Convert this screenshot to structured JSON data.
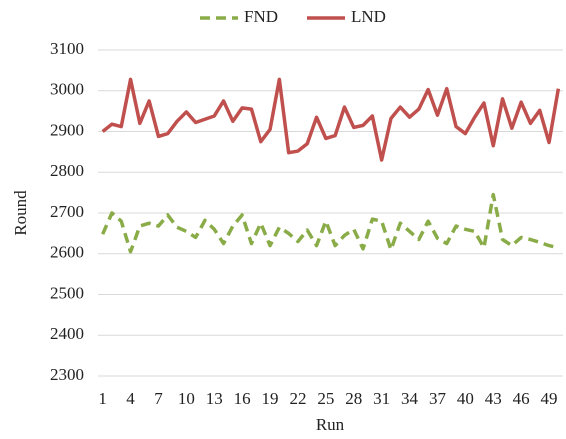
{
  "chart_data": {
    "type": "line",
    "x_label": "Run",
    "y_label": "Round",
    "categories": [
      1,
      null,
      null,
      4,
      null,
      null,
      7,
      null,
      null,
      10,
      null,
      null,
      13,
      null,
      null,
      16,
      null,
      null,
      19,
      null,
      null,
      22,
      null,
      null,
      25,
      null,
      null,
      28,
      null,
      null,
      31,
      null,
      null,
      34,
      null,
      null,
      37,
      null,
      null,
      40,
      null,
      null,
      43,
      null,
      null,
      46,
      null,
      null,
      49,
      null
    ],
    "series": [
      {
        "name": "FND",
        "color": "#8aac48",
        "line_style": "dashed",
        "values": [
          2648,
          2700,
          2680,
          2605,
          2668,
          2675,
          2668,
          2695,
          2665,
          2655,
          2640,
          2682,
          2660,
          2625,
          2668,
          2695,
          2625,
          2675,
          2620,
          2665,
          2650,
          2630,
          2658,
          2620,
          2680,
          2620,
          2645,
          2660,
          2612,
          2685,
          2680,
          2610,
          2675,
          2655,
          2635,
          2680,
          2638,
          2625,
          2668,
          2660,
          2655,
          2615,
          2745,
          2635,
          2620,
          2640,
          2635,
          2628,
          2620,
          2615
        ]
      },
      {
        "name": "LND",
        "color": "#c0504d",
        "line_style": "solid",
        "values": [
          2900,
          2918,
          2912,
          3028,
          2920,
          2975,
          2888,
          2895,
          2925,
          2948,
          2922,
          2930,
          2938,
          2975,
          2925,
          2958,
          2955,
          2875,
          2905,
          3028,
          2848,
          2852,
          2870,
          2935,
          2883,
          2890,
          2960,
          2910,
          2915,
          2938,
          2830,
          2932,
          2960,
          2935,
          2955,
          3003,
          2940,
          3005,
          2912,
          2895,
          2935,
          2970,
          2865,
          2980,
          2908,
          2972,
          2920,
          2952,
          2873,
          3005
        ]
      }
    ],
    "ylim": [
      2300,
      3100
    ],
    "yticks": [
      2300,
      2400,
      2500,
      2600,
      2700,
      2800,
      2900,
      3000,
      3100
    ],
    "grid": true,
    "legend": "top"
  }
}
